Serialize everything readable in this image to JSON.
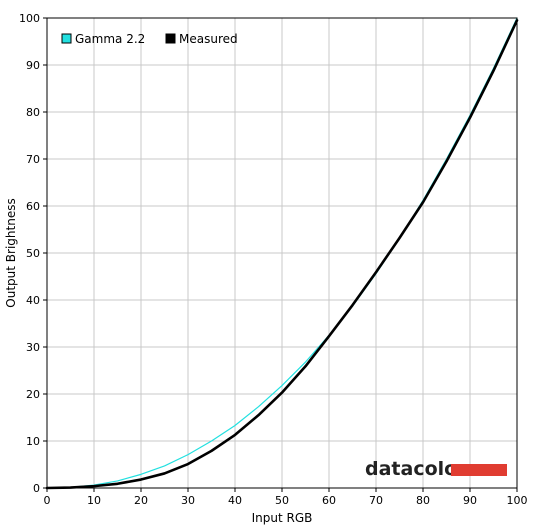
{
  "chart_data": {
    "type": "line",
    "title": "",
    "xlabel": "Input RGB",
    "ylabel": "Output Brightness",
    "xlim": [
      0,
      100
    ],
    "ylim": [
      0,
      100
    ],
    "x_ticks": [
      "0",
      "10",
      "20",
      "30",
      "40",
      "50",
      "60",
      "70",
      "80",
      "90",
      "100"
    ],
    "y_ticks": [
      "0",
      "10",
      "20",
      "30",
      "40",
      "50",
      "60",
      "70",
      "80",
      "90",
      "100"
    ],
    "grid": true,
    "legend_position": "top-left",
    "series": [
      {
        "name": "Gamma 2.2",
        "color": "#22e0e0",
        "x": [
          0,
          5,
          10,
          15,
          20,
          25,
          30,
          35,
          40,
          45,
          50,
          55,
          60,
          65,
          70,
          75,
          80,
          85,
          90,
          95,
          100
        ],
        "y": [
          0,
          0.14,
          0.63,
          1.5,
          2.9,
          4.7,
          7.1,
          10.0,
          13.3,
          17.3,
          21.8,
          26.8,
          32.5,
          38.7,
          45.6,
          53.1,
          61.2,
          70.0,
          79.3,
          89.3,
          100
        ]
      },
      {
        "name": "Measured",
        "color": "#000000",
        "x": [
          0,
          5,
          10,
          15,
          20,
          25,
          30,
          35,
          40,
          45,
          50,
          55,
          60,
          65,
          70,
          75,
          80,
          85,
          90,
          95,
          100
        ],
        "y": [
          0,
          0.1,
          0.4,
          0.9,
          1.8,
          3.1,
          5.1,
          7.9,
          11.3,
          15.5,
          20.3,
          25.9,
          32.3,
          38.9,
          45.9,
          53.2,
          60.8,
          69.5,
          78.8,
          88.8,
          99.5
        ]
      }
    ],
    "watermark": "datacolor"
  }
}
